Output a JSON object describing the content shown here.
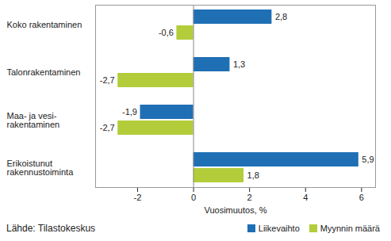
{
  "chart_data": {
    "type": "bar",
    "orientation": "horizontal",
    "categories": [
      "Koko rakentaminen",
      "Talonrakentaminen",
      "Maa- ja vesi-\nrakentaminen",
      "Erikoistunut\nrakennustoiminta"
    ],
    "series": [
      {
        "name": "Liikevaihto",
        "color": "#1f6fb5",
        "values": [
          2.8,
          1.3,
          -1.9,
          5.9
        ],
        "value_labels": [
          "2,8",
          "1,3",
          "-1,9",
          "5,9"
        ]
      },
      {
        "name": "Myynnin määrä",
        "color": "#b3cd3a",
        "values": [
          -0.6,
          -2.7,
          -2.7,
          1.8
        ],
        "value_labels": [
          "-0,6",
          "-2,7",
          "-2,7",
          "1,8"
        ]
      }
    ],
    "xlabel": "Vuosimuutos, %",
    "xlim": [
      -3.5,
      6.5
    ],
    "xticks": [
      -2,
      0,
      2,
      4,
      6
    ],
    "data_labels": true,
    "legend": "bottom right",
    "grid": false,
    "source": "Lähde: Tilastokeskus"
  }
}
